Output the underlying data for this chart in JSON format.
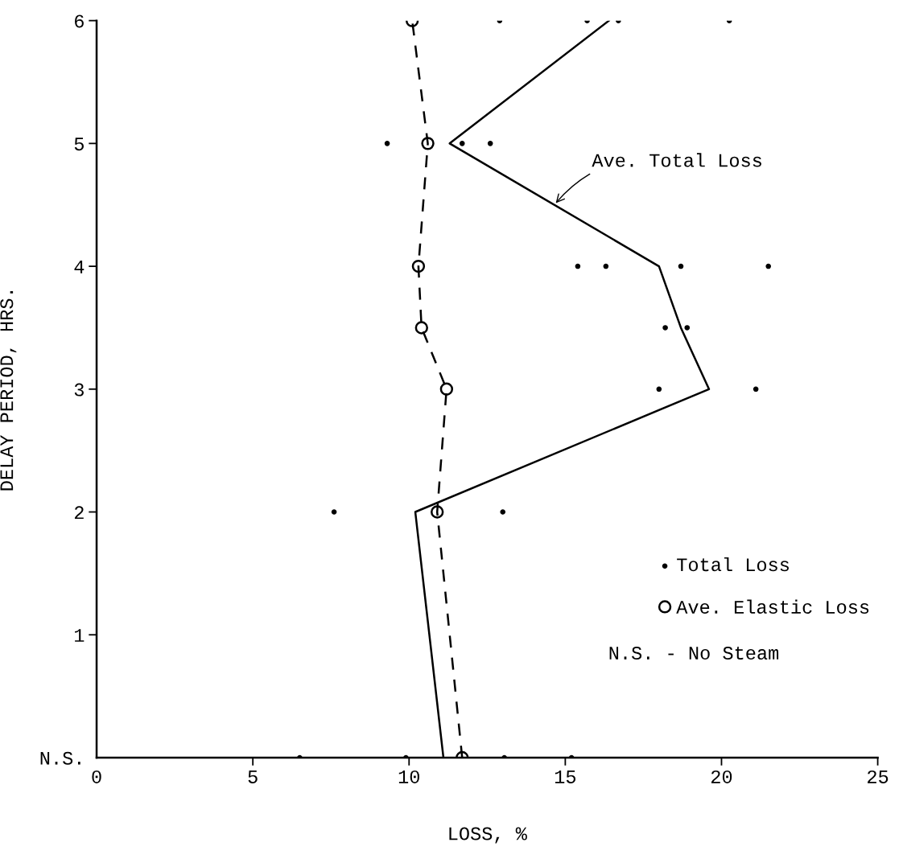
{
  "chart_data": {
    "type": "line",
    "xlabel": "LOSS, %",
    "ylabel": "DELAY PERIOD, HRS.",
    "xlim": [
      0,
      25
    ],
    "xticks": [
      0,
      5,
      10,
      15,
      20,
      25
    ],
    "ylim": [
      0,
      6
    ],
    "yticks": [
      {
        "value": 0,
        "label": "N.S."
      },
      1,
      2,
      3,
      4,
      5,
      6
    ],
    "grid": false,
    "legend": "lower right",
    "series": [
      {
        "name": "Total Loss",
        "type": "scatter",
        "color": "#000000",
        "marker": "circle",
        "x": [
          6.5,
          9.9,
          13.05,
          15.2,
          7.6,
          13.0,
          18.0,
          21.1,
          18.2,
          18.9,
          15.4,
          16.3,
          18.7,
          21.5,
          9.3,
          11.7,
          12.6,
          12.9,
          15.7,
          16.7,
          20.25
        ],
        "values": [
          0,
          0,
          0,
          0,
          2,
          2,
          3,
          3,
          3.5,
          3.5,
          4,
          4,
          4,
          4,
          5,
          5,
          5,
          6,
          6,
          6,
          6
        ]
      },
      {
        "name": "Ave. Elastic Loss",
        "color": "#000000",
        "marker": "circle",
        "line_style": "dashed",
        "x": [
          11.7,
          10.9,
          11.2,
          10.4,
          10.3,
          10.6,
          10.1
        ],
        "values": [
          0,
          2,
          3,
          3.5,
          4,
          5,
          6
        ]
      },
      {
        "name": "Ave. Total Loss",
        "color": "#000000",
        "marker": "none",
        "line_style": "solid",
        "x": [
          11.1,
          10.2,
          19.6,
          18.7,
          18.0,
          11.3,
          16.4
        ],
        "values": [
          0,
          2,
          3,
          3.5,
          4,
          5,
          6
        ]
      }
    ],
    "annotations": [
      "N.S. - No Steam"
    ]
  }
}
